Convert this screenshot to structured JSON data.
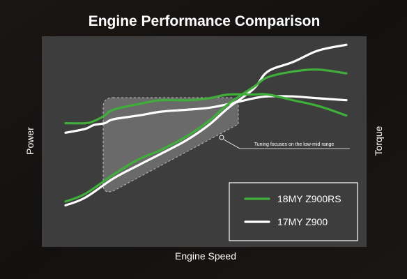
{
  "colors": {
    "background": "#141110",
    "plot_area": "#3d3d3d",
    "green": "#3fae3a",
    "white": "#ffffff",
    "highlight": "#7a7a7a"
  },
  "chart_data": {
    "type": "line",
    "title": "Engine Performance Comparison",
    "xlabel": "Engine Speed",
    "ylabel_left": "Power",
    "ylabel_right": "Torque",
    "xlim": [
      0,
      100
    ],
    "ylim": [
      0,
      100
    ],
    "grid": false,
    "legend_position": "bottom-right",
    "annotation": "Tuning focuses on the low-mid range",
    "series": [
      {
        "name": "18MY Z900RS",
        "color": "#3fae3a",
        "kind": "torque",
        "x": [
          0,
          7,
          10,
          14,
          17,
          26,
          34,
          43,
          51,
          58,
          67,
          72,
          81,
          90,
          100
        ],
        "y": [
          56,
          56,
          57,
          60,
          63,
          66,
          68,
          68,
          69,
          71,
          71,
          71,
          68,
          65,
          60
        ]
      },
      {
        "name": "18MY Z900RS",
        "color": "#3fae3a",
        "kind": "power",
        "x": [
          0,
          7,
          17,
          26,
          34,
          43,
          51,
          58,
          67,
          72,
          81,
          90,
          100
        ],
        "y": [
          15,
          19,
          29,
          37,
          42,
          49,
          57,
          66,
          75,
          80,
          83,
          84,
          82
        ]
      },
      {
        "name": "17MY Z900",
        "color": "#ffffff",
        "kind": "torque",
        "x": [
          0,
          7,
          10,
          14,
          17,
          26,
          34,
          43,
          51,
          58,
          67,
          72,
          81,
          90,
          100
        ],
        "y": [
          51,
          53,
          55,
          56,
          58,
          60,
          62,
          63,
          64,
          66,
          69,
          70,
          70,
          69,
          68
        ]
      },
      {
        "name": "17MY Z900",
        "color": "#ffffff",
        "kind": "power",
        "x": [
          0,
          7,
          17,
          26,
          34,
          43,
          51,
          58,
          67,
          72,
          81,
          90,
          100
        ],
        "y": [
          13,
          17,
          27,
          34,
          40,
          47,
          55,
          64,
          74,
          83,
          88,
          94,
          97
        ]
      }
    ],
    "legend": [
      {
        "label": "18MY Z900RS",
        "color": "#3fae3a"
      },
      {
        "label": "17MY Z900",
        "color": "#ffffff"
      }
    ]
  }
}
